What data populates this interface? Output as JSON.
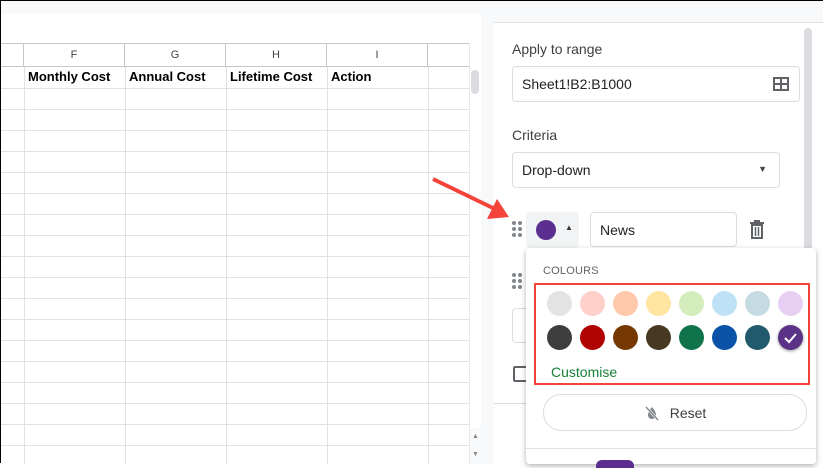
{
  "sheet": {
    "columns": [
      "F",
      "G",
      "H",
      "I"
    ],
    "headers": [
      "Monthly Cost",
      "Annual Cost",
      "Lifetime Cost",
      "Action"
    ]
  },
  "panel": {
    "apply_label": "Apply to range",
    "range_value": "Sheet1!B2:B1000",
    "range_icon": "grid-select-icon",
    "criteria_label": "Criteria",
    "criteria_value": "Drop-down",
    "option_value": "News",
    "option_color": "#5b2e8f"
  },
  "popup": {
    "colours_label": "COLOURS",
    "row1": [
      "#e3e3e3",
      "#ffcfc9",
      "#ffc8aa",
      "#ffe5a0",
      "#d4edbc",
      "#bfe1f6",
      "#c6dbe1",
      "#e6cff2"
    ],
    "row2": [
      "#3d3d3d",
      "#b10202",
      "#753800",
      "#473822",
      "#11734b",
      "#0a53a8",
      "#215a6c",
      "#5a3286"
    ],
    "selected": "#5a3286",
    "customise_label": "Customise",
    "reset_label": "Reset"
  },
  "annotation": {
    "arrow_color": "#f4433a",
    "highlight_color": "#f4433a"
  }
}
